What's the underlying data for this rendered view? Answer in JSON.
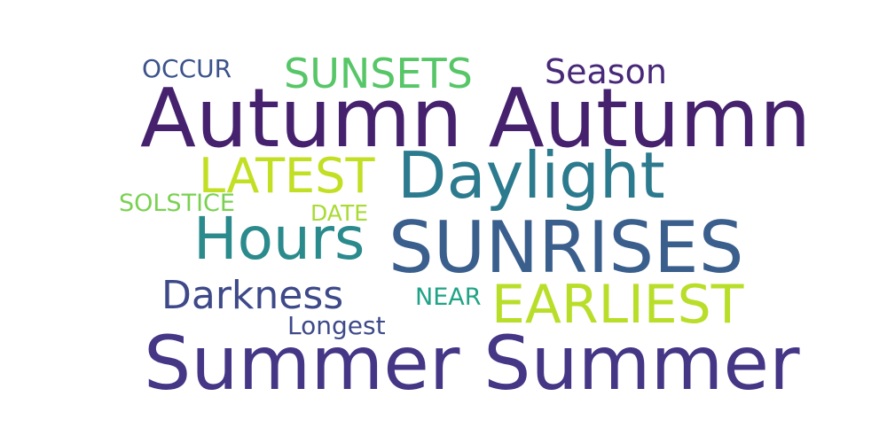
{
  "words": [
    {
      "text": "Autumn Autumn",
      "color": "#46226e"
    },
    {
      "text": "Summer Summer",
      "color": "#453686"
    },
    {
      "text": "SUNRISES",
      "color": "#3b5f8d"
    },
    {
      "text": "Daylight",
      "color": "#2c7a8e"
    },
    {
      "text": "Hours",
      "color": "#2a8a8c"
    },
    {
      "text": "EARLIEST",
      "color": "#b8de29"
    },
    {
      "text": "LATEST",
      "color": "#c2df23"
    },
    {
      "text": "SUNSETS",
      "color": "#56c667"
    },
    {
      "text": "Season",
      "color": "#482878"
    },
    {
      "text": "Darkness",
      "color": "#3e4989"
    },
    {
      "text": "OCCUR",
      "color": "#3b528b"
    },
    {
      "text": "SOLSTICE",
      "color": "#7ad151"
    },
    {
      "text": "DATE",
      "color": "#a8db34"
    },
    {
      "text": "NEAR",
      "color": "#20a386"
    },
    {
      "text": "Longest",
      "color": "#3e4a89"
    }
  ]
}
